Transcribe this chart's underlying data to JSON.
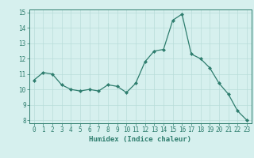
{
  "x": [
    0,
    1,
    2,
    3,
    4,
    5,
    6,
    7,
    8,
    9,
    10,
    11,
    12,
    13,
    14,
    15,
    16,
    17,
    18,
    19,
    20,
    21,
    22,
    23
  ],
  "y": [
    10.6,
    11.1,
    11.0,
    10.3,
    10.0,
    9.9,
    10.0,
    9.9,
    10.3,
    10.2,
    9.8,
    10.4,
    11.8,
    12.5,
    12.6,
    14.5,
    14.9,
    12.3,
    12.0,
    11.4,
    10.4,
    9.7,
    8.6,
    8.0
  ],
  "line_color": "#2e7d6e",
  "bg_color": "#d6f0ee",
  "grid_color": "#b8ddd9",
  "xlabel": "Humidex (Indice chaleur)",
  "ylim": [
    7.8,
    15.2
  ],
  "xlim": [
    -0.5,
    23.5
  ],
  "yticks": [
    8,
    9,
    10,
    11,
    12,
    13,
    14,
    15
  ],
  "xticks": [
    0,
    1,
    2,
    3,
    4,
    5,
    6,
    7,
    8,
    9,
    10,
    11,
    12,
    13,
    14,
    15,
    16,
    17,
    18,
    19,
    20,
    21,
    22,
    23
  ],
  "tick_color": "#2e7d6e",
  "label_fontsize": 6.5,
  "tick_fontsize": 5.5
}
